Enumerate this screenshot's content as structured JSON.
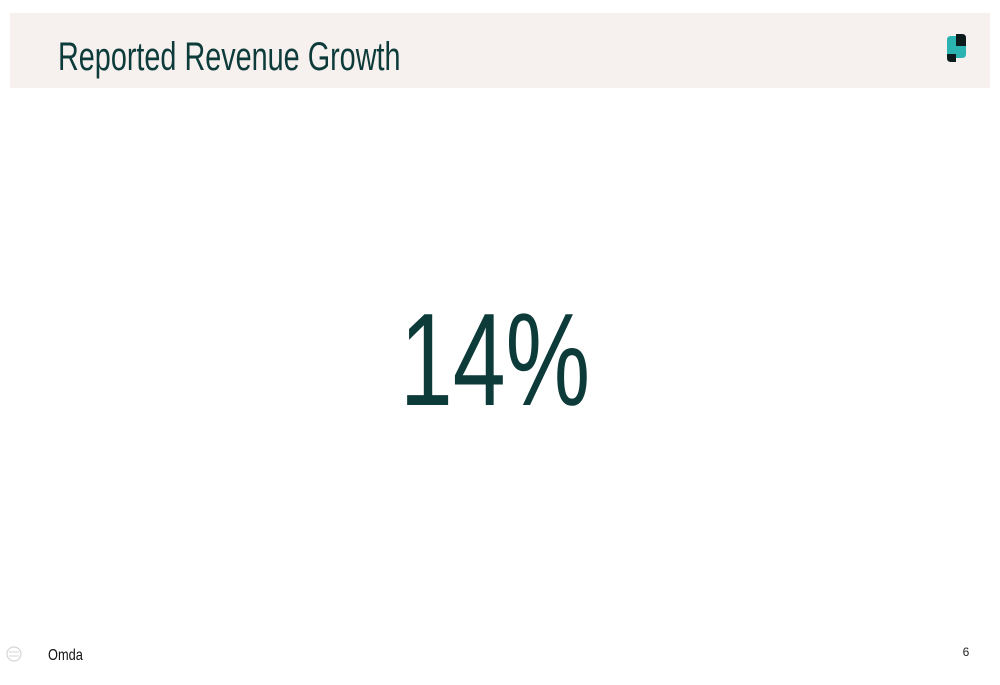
{
  "header": {
    "title": "Reported Revenue Growth"
  },
  "body": {
    "headline_figure": "14%"
  },
  "footer": {
    "brand": "Omda",
    "page_number": "6"
  }
}
